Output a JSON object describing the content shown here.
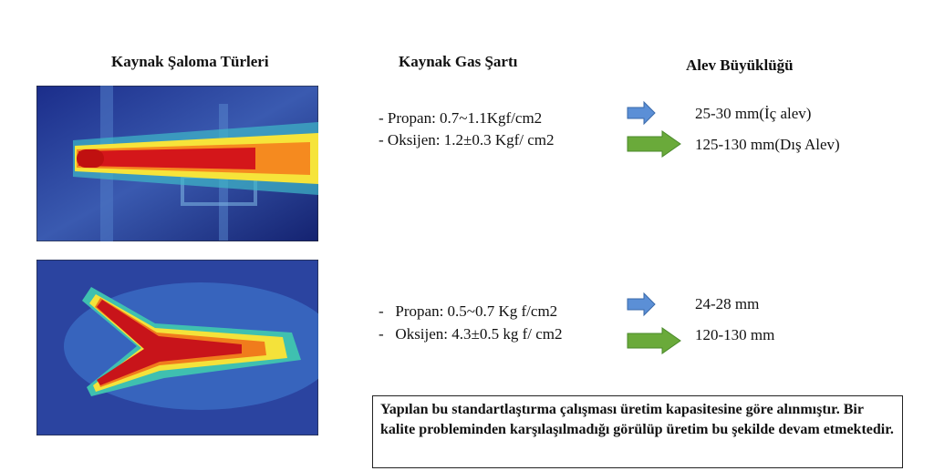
{
  "headers": [
    "Kaynak Şaloma Türleri",
    "Kaynak Gas Şartı",
    "Alev Büyüklüğü"
  ],
  "rows": [
    {
      "conditions": [
        "- Propan: 0.7~1.1Kgf/cm2",
        "- Oksijen: 1.2±0.3 Kgf/ cm2"
      ],
      "sizes": [
        "25-30 mm(İç alev)",
        "125-130 mm(Dış Alev)"
      ]
    },
    {
      "conditions": [
        "-   Propan: 0.5~0.7 Kg f/cm2",
        "-   Oksijen: 4.3±0.5 kg f/ cm2"
      ],
      "sizes": [
        "24-28 mm",
        "120-130 mm"
      ]
    }
  ],
  "note": "Yapılan bu standartlaştırma çalışması üretim kapasitesine göre alınmıştır. Bir kalite probleminden karşılaşılmadığı görülüp üretim bu şekilde devam etmektedir."
}
